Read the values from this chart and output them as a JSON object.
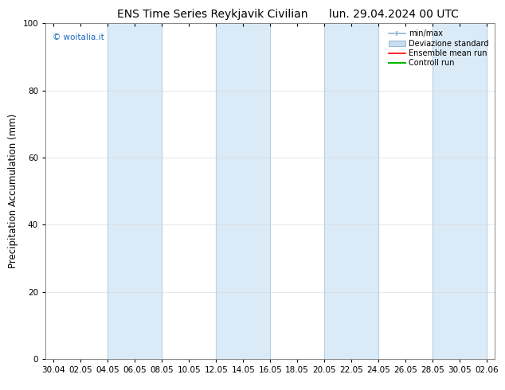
{
  "title_left": "ENS Time Series Reykjavik Civilian",
  "title_right": "lun. 29.04.2024 00 UTC",
  "ylabel": "Precipitation Accumulation (mm)",
  "watermark": "© woitalia.it",
  "watermark_color": "#1a6abf",
  "ylim": [
    0,
    100
  ],
  "yticks": [
    0,
    20,
    40,
    60,
    80,
    100
  ],
  "x_labels": [
    "30.04",
    "02.05",
    "04.05",
    "06.05",
    "08.05",
    "10.05",
    "12.05",
    "14.05",
    "16.05",
    "18.05",
    "20.05",
    "22.05",
    "24.05",
    "26.05",
    "28.05",
    "30.05",
    "02.06"
  ],
  "band_color": "#daeaf7",
  "band_edge_color": "#b0cce0",
  "legend_labels": [
    "min/max",
    "Deviazione standard",
    "Ensemble mean run",
    "Controll run"
  ],
  "minmax_color": "#90b8d8",
  "std_color": "#c8ddf0",
  "ensemble_color": "#ff0000",
  "control_color": "#00bb00",
  "bg_color": "#ffffff",
  "plot_bg_color": "#ffffff",
  "grid_color": "#dddddd",
  "title_fontsize": 10,
  "tick_fontsize": 7.5,
  "ylabel_fontsize": 8.5
}
